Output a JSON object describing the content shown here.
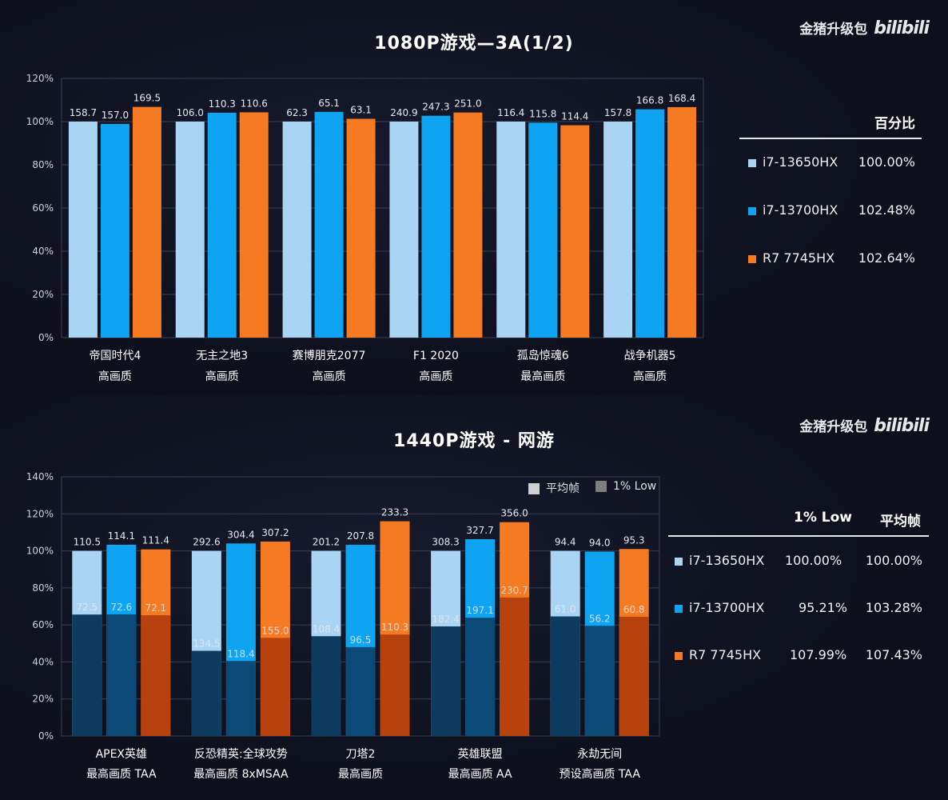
{
  "charts": [
    {
      "title": "1080P游戏—3A(1/2)",
      "brand": "金猪升级包",
      "brand_logo": "bilibili",
      "legend": {
        "header": "百分比",
        "rows": [
          {
            "name": "i7-13650HX",
            "value": "100.00%"
          },
          {
            "name": "i7-13700HX",
            "value": "102.48%"
          },
          {
            "name": "R7 7745HX",
            "value": "102.64%"
          }
        ]
      }
    },
    {
      "title": "1440P游戏 - 网游",
      "brand": "金猪升级包",
      "brand_logo": "bilibili",
      "small_legend": {
        "avg": "平均帧",
        "low": "1% Low"
      },
      "legend": {
        "headers": [
          "1% Low",
          "平均帧"
        ],
        "rows": [
          {
            "name": "i7-13650HX",
            "low": "100.00%",
            "avg": "100.00%"
          },
          {
            "name": "i7-13700HX",
            "low": "95.21%",
            "avg": "103.28%"
          },
          {
            "name": "R7 7745HX",
            "low": "107.99%",
            "avg": "107.43%"
          }
        ]
      }
    }
  ],
  "colors": {
    "light": "#a9d4f4",
    "blue": "#0ea4f2",
    "orange": "#f57a22",
    "dark_light": "#0e3c60",
    "dark_blue": "#0b4a77",
    "dark_orange": "#b8420d"
  },
  "chart_data": [
    {
      "type": "bar",
      "title": "1080P游戏—3A(1/2)",
      "categories": [
        [
          "帝国时代4",
          "高画质"
        ],
        [
          "无主之地3",
          "高画质"
        ],
        [
          "赛博朋克2077",
          "高画质"
        ],
        [
          "F1 2020",
          "高画质"
        ],
        [
          "孤岛惊魂6",
          "最高画质"
        ],
        [
          "战争机器5",
          "高画质"
        ]
      ],
      "ylim": [
        0,
        120
      ],
      "yticks": [
        "0%",
        "20%",
        "40%",
        "60%",
        "80%",
        "100%",
        "120%"
      ],
      "grid": true,
      "series": [
        {
          "name": "i7-13650HX",
          "color": "#a9d4f4",
          "percent": [
            100,
            100,
            100,
            100,
            100,
            100
          ],
          "labels": [
            "158.7",
            "106.0",
            "62.3",
            "240.9",
            "116.4",
            "157.8"
          ]
        },
        {
          "name": "i7-13700HX",
          "color": "#0ea4f2",
          "percent": [
            98.9,
            104.1,
            104.5,
            102.7,
            99.5,
            105.7
          ],
          "labels": [
            "157.0",
            "110.3",
            "65.1",
            "247.3",
            "115.8",
            "166.8"
          ]
        },
        {
          "name": "R7 7745HX",
          "color": "#f57a22",
          "percent": [
            106.8,
            104.3,
            101.3,
            104.2,
            98.3,
            106.7
          ],
          "labels": [
            "169.5",
            "110.6",
            "63.1",
            "251.0",
            "114.4",
            "168.4"
          ]
        }
      ]
    },
    {
      "type": "bar",
      "title": "1440P游戏 - 网游",
      "categories": [
        [
          "APEX英雄",
          "最高画质 TAA"
        ],
        [
          "反恐精英:全球攻势",
          "最高画质 8xMSAA"
        ],
        [
          "刀塔2",
          "最高画质"
        ],
        [
          "英雄联盟",
          "最高画质 AA"
        ],
        [
          "永劫无间",
          "预设高画质 TAA"
        ]
      ],
      "ylim": [
        0,
        140
      ],
      "yticks": [
        "0%",
        "20%",
        "40%",
        "60%",
        "80%",
        "100%",
        "120%",
        "140%"
      ],
      "grid": true,
      "series": [
        {
          "name": "i7-13650HX",
          "color": "#a9d4f4",
          "dark": "#0e3c60",
          "avg_percent": [
            100,
            100,
            100,
            100,
            100
          ],
          "avg_labels": [
            "110.5",
            "292.6",
            "201.2",
            "308.3",
            "94.4"
          ],
          "low_percent": [
            65.6,
            46,
            53.9,
            59.2,
            64.6
          ],
          "low_labels": [
            "72.5",
            "134.5",
            "108.4",
            "182.4",
            "61.0"
          ]
        },
        {
          "name": "i7-13700HX",
          "color": "#0ea4f2",
          "dark": "#0b4a77",
          "avg_percent": [
            103.3,
            104,
            103.3,
            106.3,
            99.6
          ],
          "avg_labels": [
            "114.1",
            "304.4",
            "207.8",
            "327.7",
            "94.0"
          ],
          "low_percent": [
            65.7,
            40.5,
            48,
            63.9,
            59.5
          ],
          "low_labels": [
            "72.6",
            "118.4",
            "96.5",
            "197.1",
            "56.2"
          ]
        },
        {
          "name": "R7 7745HX",
          "color": "#f57a22",
          "dark": "#b8420d",
          "avg_percent": [
            100.8,
            105,
            116,
            115.5,
            101
          ],
          "avg_labels": [
            "111.4",
            "307.2",
            "233.3",
            "356.0",
            "95.3"
          ],
          "low_percent": [
            65.2,
            53,
            54.8,
            74.8,
            64.4
          ],
          "low_labels": [
            "72.1",
            "155.0",
            "110.3",
            "230.7",
            "60.8"
          ]
        }
      ]
    }
  ]
}
